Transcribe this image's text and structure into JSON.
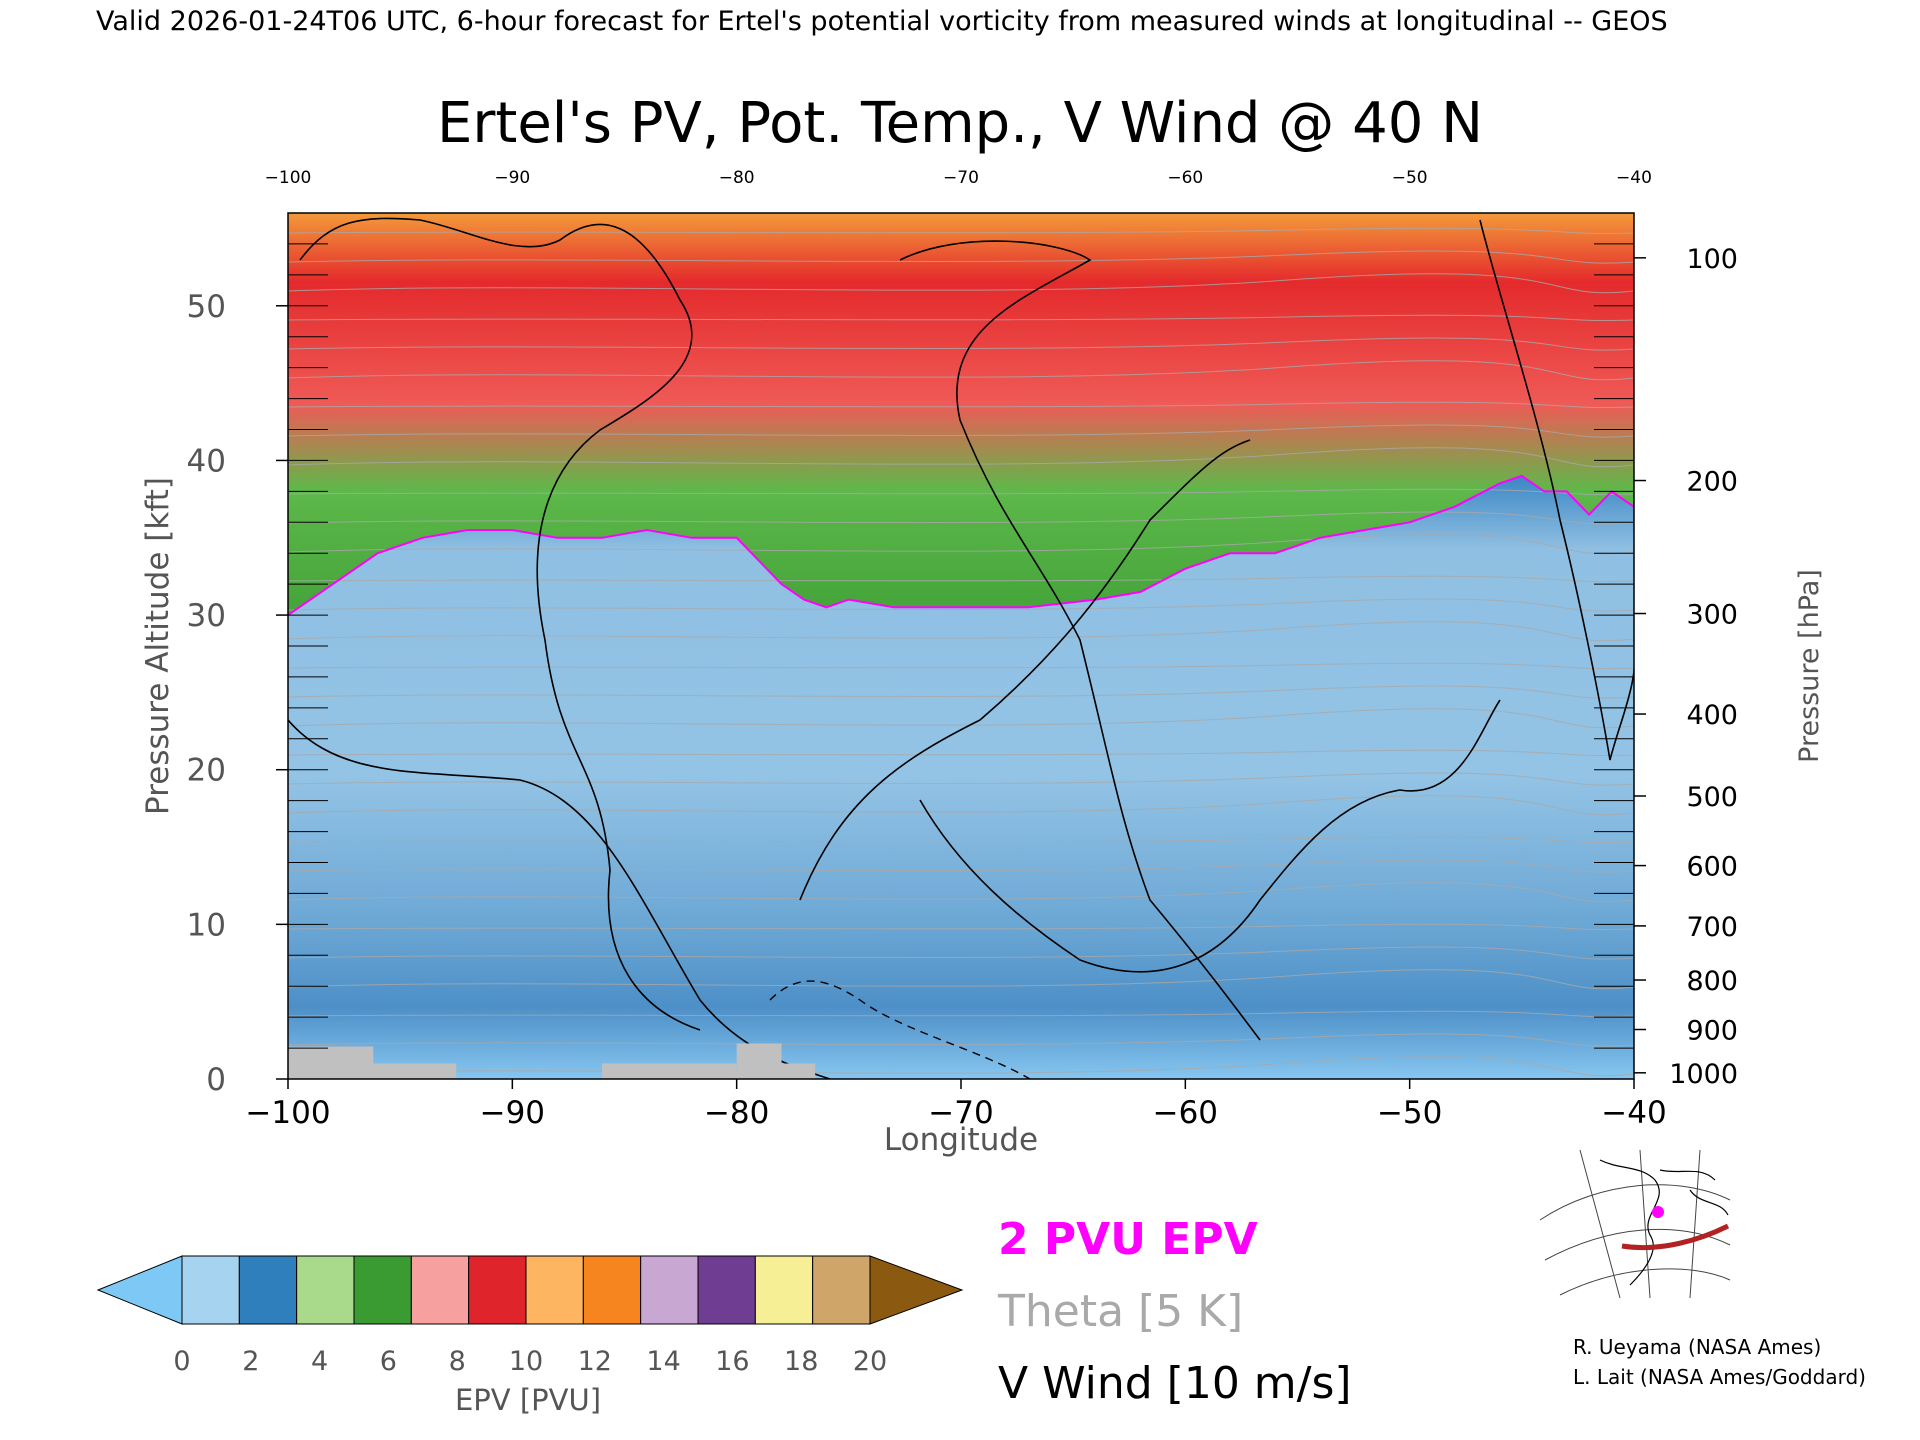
{
  "header_text": "Valid 2026-01-24T06 UTC, 6-hour forecast for Ertel's potential vorticity from measured winds at longitudinal -- GEOS",
  "chart_data": {
    "type": "heatmap",
    "title": "Ertel's PV, Pot. Temp., V Wind @ 40 N",
    "xlabel": "Longitude",
    "ylabel": "Pressure Altitude [kft]",
    "y2label": "Pressure [hPa]",
    "xlim": [
      -100,
      -40
    ],
    "ylim": [
      0,
      56
    ],
    "x_ticks": [
      -100,
      -90,
      -80,
      -70,
      -60,
      -50,
      -40
    ],
    "x_tick_labels": [
      "−100",
      "−90",
      "−80",
      "−70",
      "−60",
      "−50",
      "−40"
    ],
    "top_ticks": [
      -100,
      -90,
      -80,
      -70,
      -60,
      -50,
      -40
    ],
    "top_tick_labels": [
      "−100",
      "−90",
      "−80",
      "−70",
      "−60",
      "−50",
      "−40"
    ],
    "y_ticks": [
      0,
      10,
      20,
      30,
      40,
      50
    ],
    "y_tick_labels": [
      "0",
      "10",
      "20",
      "30",
      "40",
      "50"
    ],
    "pressure_ticks": [
      {
        "hpa": 100,
        "kft": 53.1,
        "label": "100"
      },
      {
        "hpa": 200,
        "kft": 38.7,
        "label": "200"
      },
      {
        "hpa": 300,
        "kft": 30.1,
        "label": "300"
      },
      {
        "hpa": 400,
        "kft": 23.6,
        "label": "400"
      },
      {
        "hpa": 500,
        "kft": 18.3,
        "label": "500"
      },
      {
        "hpa": 600,
        "kft": 13.8,
        "label": "600"
      },
      {
        "hpa": 700,
        "kft": 9.9,
        "label": "700"
      },
      {
        "hpa": 800,
        "kft": 6.4,
        "label": "800"
      },
      {
        "hpa": 900,
        "kft": 3.2,
        "label": "900"
      },
      {
        "hpa": 1000,
        "kft": 0.4,
        "label": "1000"
      }
    ],
    "tropopause_2pvu": {
      "lon": [
        -100,
        -98,
        -96,
        -94,
        -92,
        -90,
        -88,
        -86,
        -84,
        -82,
        -80,
        -78,
        -77,
        -76,
        -75,
        -73,
        -70,
        -67,
        -64,
        -62,
        -60,
        -58,
        -56,
        -54,
        -52,
        -50,
        -48,
        -46,
        -45,
        -44,
        -43,
        -42,
        -41,
        -40
      ],
      "kft": [
        30.0,
        32.0,
        34.0,
        35.0,
        35.5,
        35.5,
        35.0,
        35.0,
        35.5,
        35.0,
        35.0,
        32.0,
        31.0,
        30.5,
        31.0,
        30.5,
        30.5,
        30.5,
        31.0,
        31.5,
        33.0,
        34.0,
        34.0,
        35.0,
        35.5,
        36.0,
        37.0,
        38.5,
        39.0,
        38.0,
        38.0,
        36.5,
        38.0,
        37.0
      ]
    },
    "colorbar": {
      "label": "EPV [PVU]",
      "ticks": [
        0,
        2,
        4,
        6,
        8,
        10,
        12,
        14,
        16,
        18,
        20
      ],
      "tick_labels": [
        "0",
        "2",
        "4",
        "6",
        "8",
        "10",
        "12",
        "14",
        "16",
        "18",
        "20"
      ],
      "under_color": "#7ec8f5",
      "over_color": "#8b5a10",
      "colors": [
        "#a6d3ef",
        "#2f7fbd",
        "#a9d98a",
        "#3a9b32",
        "#f7a0a0",
        "#e0242b",
        "#fdb561",
        "#f6851f",
        "#c9a7d3",
        "#6f3d91",
        "#f7ef96",
        "#cfa56a"
      ]
    },
    "legend": [
      {
        "label": "2 PVU EPV",
        "color": "#ff00ff"
      },
      {
        "label": "Theta [5 K]",
        "color": "#a9a9a9"
      },
      {
        "label": "V Wind [10 m/s]",
        "color": "#000000"
      }
    ],
    "colors": {
      "stratosphere_green": "#46a83c",
      "stratosphere_red": "#e52c2c",
      "troposphere_blue": "#8ebfe0",
      "surface": "#c0c0c0"
    }
  },
  "credits": [
    "R. Ueyama (NASA Ames)",
    "L. Lait (NASA Ames/Goddard)"
  ]
}
